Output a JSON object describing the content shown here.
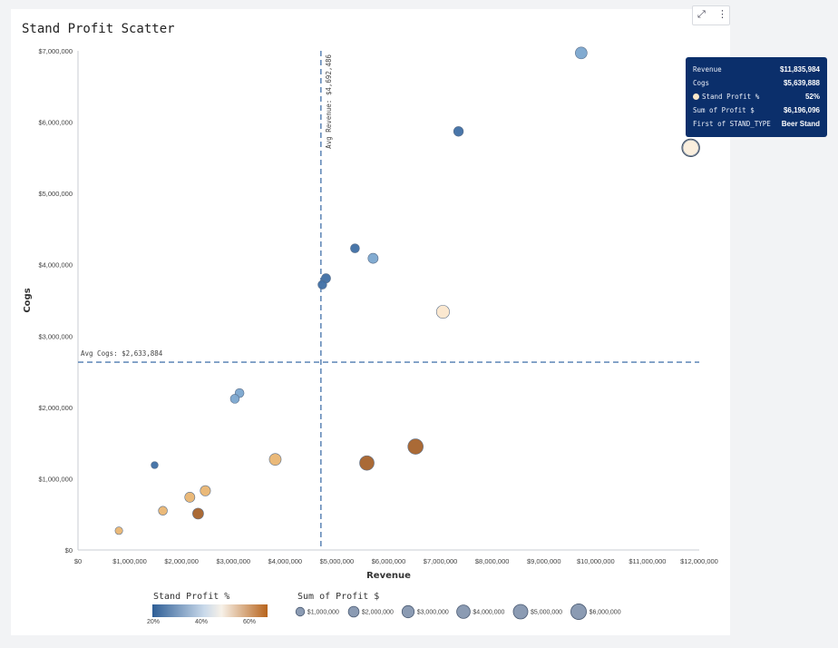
{
  "title": "Stand Profit Scatter",
  "toolbar": {
    "expand_icon": "expand-icon",
    "more_icon": "more-vertical-icon"
  },
  "chart_data": {
    "type": "scatter",
    "title": "Stand Profit Scatter",
    "xlabel": "Revenue",
    "ylabel": "Cogs",
    "xlim": [
      0,
      12000000
    ],
    "ylim": [
      0,
      7000000
    ],
    "xticks": [
      0,
      1000000,
      2000000,
      3000000,
      4000000,
      5000000,
      6000000,
      7000000,
      8000000,
      9000000,
      10000000,
      11000000,
      12000000
    ],
    "xtick_labels": [
      "$0",
      "$1,000,000",
      "$2,000,000",
      "$3,000,000",
      "$4,000,000",
      "$5,000,000",
      "$6,000,000",
      "$7,000,000",
      "$8,000,000",
      "$9,000,000",
      "$10,000,000",
      "$11,000,000",
      "$12,000,000"
    ],
    "yticks": [
      0,
      1000000,
      2000000,
      3000000,
      4000000,
      5000000,
      6000000,
      7000000
    ],
    "ytick_labels": [
      "$0",
      "$1,000,000",
      "$2,000,000",
      "$3,000,000",
      "$4,000,000",
      "$5,000,000",
      "$6,000,000",
      "$7,000,000"
    ],
    "grid": false,
    "reference_lines": [
      {
        "axis": "x",
        "value": 4692486,
        "label": "Avg Revenue: $4,692,486"
      },
      {
        "axis": "y",
        "value": 2633884,
        "label": "Avg Cogs: $2,633,884"
      }
    ],
    "color_by": "Stand Profit %",
    "size_by": "Sum of Profit $",
    "points": [
      {
        "x": 11835984,
        "y": 5639888,
        "color": "#fbeedc",
        "size": 6196096
      },
      {
        "x": 9720000,
        "y": 6970000,
        "color": "#7ba6cf",
        "size": 2750000
      },
      {
        "x": 7350000,
        "y": 5870000,
        "color": "#3f6fa4",
        "size": 1480000
      },
      {
        "x": 5350000,
        "y": 4230000,
        "color": "#3f6fa4",
        "size": 1120000
      },
      {
        "x": 5700000,
        "y": 4090000,
        "color": "#7ba6cf",
        "size": 1700000
      },
      {
        "x": 4790000,
        "y": 3810000,
        "color": "#3f6fa4",
        "size": 1250000
      },
      {
        "x": 4720000,
        "y": 3720000,
        "color": "#3f6fa4",
        "size": 1050000
      },
      {
        "x": 7050000,
        "y": 3340000,
        "color": "#fbe7cd",
        "size": 3700000
      },
      {
        "x": 3120000,
        "y": 2200000,
        "color": "#7ba6cf",
        "size": 1120000
      },
      {
        "x": 3030000,
        "y": 2120000,
        "color": "#7ba6cf",
        "size": 1120000
      },
      {
        "x": 6520000,
        "y": 1450000,
        "color": "#a5622b",
        "size": 5800000
      },
      {
        "x": 5580000,
        "y": 1220000,
        "color": "#a5622b",
        "size": 5000000
      },
      {
        "x": 3810000,
        "y": 1270000,
        "color": "#e9b572",
        "size": 2800000
      },
      {
        "x": 1480000,
        "y": 1190000,
        "color": "#3f6fa4",
        "size": 420000
      },
      {
        "x": 2460000,
        "y": 830000,
        "color": "#e9b572",
        "size": 1800000
      },
      {
        "x": 2160000,
        "y": 740000,
        "color": "#e9b572",
        "size": 1700000
      },
      {
        "x": 2320000,
        "y": 510000,
        "color": "#a5622b",
        "size": 2200000
      },
      {
        "x": 1640000,
        "y": 550000,
        "color": "#e9b572",
        "size": 1100000
      },
      {
        "x": 790000,
        "y": 270000,
        "color": "#e9b572",
        "size": 600000
      }
    ],
    "legend": {
      "placement": "bottom",
      "color_title": "Stand Profit %",
      "color_ticks": [
        "20%",
        "40%",
        "60%"
      ],
      "size_title": "Sum of Profit $",
      "size_items": [
        {
          "label": "$1,000,000",
          "value": 1000000
        },
        {
          "label": "$2,000,000",
          "value": 2000000
        },
        {
          "label": "$3,000,000",
          "value": 3000000
        },
        {
          "label": "$4,000,000",
          "value": 4000000
        },
        {
          "label": "$5,000,000",
          "value": 5000000
        },
        {
          "label": "$6,000,000",
          "value": 6000000
        }
      ]
    },
    "colors": {
      "low": "#2e5e96",
      "mid": "#f7f1e8",
      "high": "#b8641c",
      "ref_line": "#4f7bb0"
    }
  },
  "tooltip": {
    "rows": [
      {
        "key": "Revenue",
        "value": "$11,835,984"
      },
      {
        "key": "Cogs",
        "value": "$5,639,888"
      },
      {
        "key": "Stand Profit %",
        "value": "52%"
      },
      {
        "key": "Sum of Profit $",
        "value": "$6,196,096"
      },
      {
        "key": "First of STAND_TYPE",
        "value": "Beer Stand"
      }
    ]
  }
}
